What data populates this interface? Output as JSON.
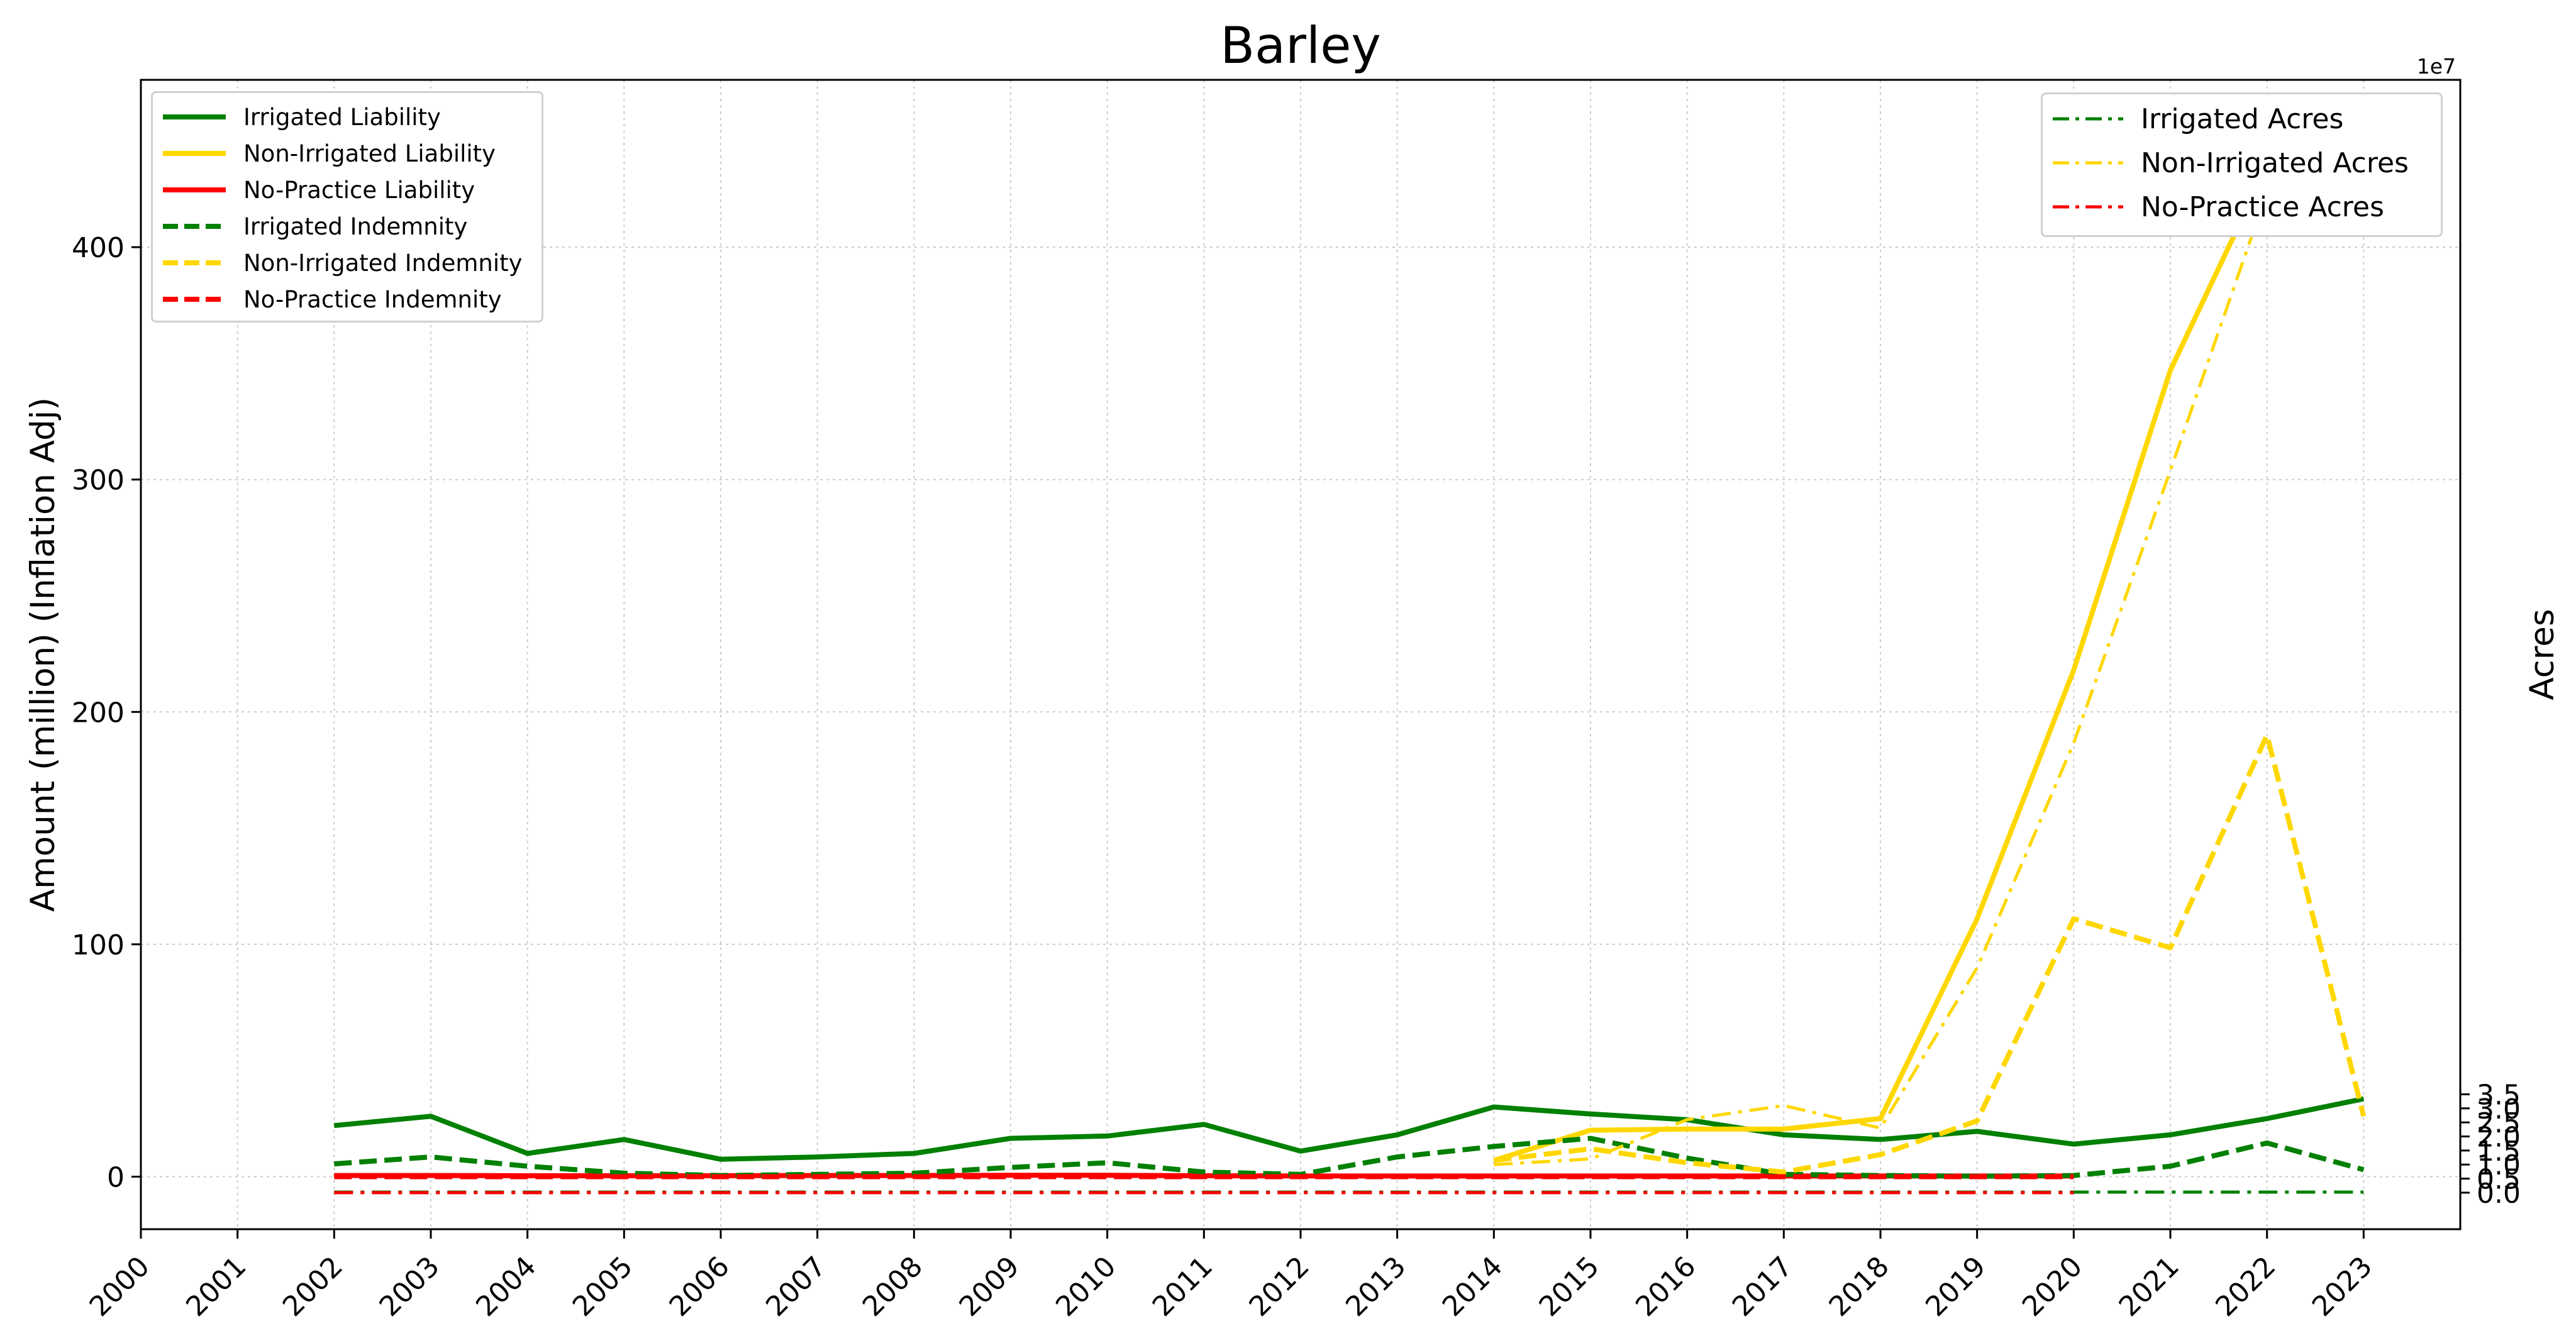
{
  "chart_data": {
    "type": "line",
    "title": "Barley",
    "ylabel": "Amount (million) (Inflation Adj)",
    "y2label": "Acres",
    "y2_offset_label": "1e7",
    "grid": true,
    "xlim": [
      2000,
      2024
    ],
    "ylim": [
      -22.6,
      472
    ],
    "y2lim": [
      -1.3,
      39.6
    ],
    "y2_scale": 10000000,
    "x": [
      2000,
      2001,
      2002,
      2003,
      2004,
      2005,
      2006,
      2007,
      2008,
      2009,
      2010,
      2011,
      2012,
      2013,
      2014,
      2015,
      2016,
      2017,
      2018,
      2019,
      2020,
      2021,
      2022,
      2023
    ],
    "xticks": [
      "2000",
      "2001",
      "2002",
      "2003",
      "2004",
      "2005",
      "2006",
      "2007",
      "2008",
      "2009",
      "2010",
      "2011",
      "2012",
      "2013",
      "2014",
      "2015",
      "2016",
      "2017",
      "2018",
      "2019",
      "2020",
      "2021",
      "2022",
      "2023"
    ],
    "yticks": [
      "0",
      "100",
      "200",
      "300",
      "400"
    ],
    "y2ticks": [
      "0.0",
      "0.5",
      "1.0",
      "1.5",
      "2.0",
      "2.5",
      "3.0",
      "3.5"
    ],
    "legend_left": {
      "placement": "top-left",
      "entries": [
        "Irrigated Liability",
        "Non-Irrigated Liability",
        "No-Practice Liability",
        "Irrigated Indemnity",
        "Non-Irrigated Indemnity",
        "No-Practice Indemnity"
      ]
    },
    "legend_right": {
      "placement": "top-right",
      "entries": [
        "Irrigated Acres",
        "Non-Irrigated Acres",
        "No-Practice Acres"
      ]
    },
    "colors": {
      "green": "#008000",
      "gold": "#FFD700",
      "red": "#FF0000"
    },
    "series": [
      {
        "name": "Irrigated Liability",
        "axis": "left",
        "style": "solid",
        "color": "#008000",
        "values": [
          null,
          null,
          22,
          26,
          10,
          16,
          7.5,
          8.5,
          10,
          16.5,
          17.5,
          22.5,
          11,
          18,
          30,
          27,
          24.5,
          18,
          16,
          19.5,
          14,
          18,
          25,
          33.5
        ]
      },
      {
        "name": "Non-Irrigated Liability",
        "axis": "left",
        "style": "solid",
        "color": "#FFD700",
        "values": [
          null,
          null,
          null,
          null,
          null,
          null,
          null,
          null,
          null,
          null,
          null,
          null,
          null,
          null,
          7,
          20,
          20.5,
          20.5,
          25,
          111,
          218,
          347,
          435,
          453
        ]
      },
      {
        "name": "No-Practice Liability",
        "axis": "left",
        "style": "solid",
        "color": "#FF0000",
        "values": [
          null,
          null,
          0.5,
          0.5,
          0.4,
          0.4,
          0.4,
          0.5,
          0.5,
          0.6,
          0.6,
          0.4,
          0.3,
          0.3,
          0.3,
          0.3,
          0.3,
          0.3,
          0.3,
          0.3,
          0.3,
          null,
          null,
          null
        ]
      },
      {
        "name": "Irrigated Indemnity",
        "axis": "left",
        "style": "dashed",
        "color": "#008000",
        "values": [
          null,
          null,
          5.5,
          8.5,
          4.5,
          1.5,
          0.5,
          1,
          1.5,
          4,
          6,
          2,
          1,
          8.5,
          13,
          16.5,
          8,
          1,
          0.5,
          0.2,
          0.5,
          4.5,
          14.5,
          3
        ]
      },
      {
        "name": "Non-Irrigated Indemnity",
        "axis": "left",
        "style": "dashed",
        "color": "#FFD700",
        "values": [
          null,
          null,
          null,
          null,
          null,
          null,
          null,
          null,
          null,
          null,
          null,
          null,
          null,
          null,
          7,
          12,
          6,
          2,
          9.5,
          24,
          111,
          98.5,
          190,
          26
        ]
      },
      {
        "name": "No-Practice Indemnity",
        "axis": "left",
        "style": "dashed",
        "color": "#FF0000",
        "values": [
          null,
          null,
          0,
          0,
          0,
          0,
          0,
          0,
          0,
          0,
          0,
          0,
          0,
          0,
          0,
          0,
          0,
          0,
          0,
          0,
          0,
          null,
          null,
          null
        ]
      },
      {
        "name": "Irrigated Acres",
        "axis": "right",
        "style": "dashdot",
        "color": "#008000",
        "values": [
          null,
          null,
          0.02,
          0.02,
          0.02,
          0.02,
          0.02,
          0.02,
          0.02,
          0.02,
          0.02,
          0.02,
          0.02,
          0.02,
          0.02,
          0.02,
          0.02,
          0.02,
          0.02,
          0.02,
          0.02,
          0.02,
          0.02,
          0.02
        ]
      },
      {
        "name": "Non-Irrigated Acres",
        "axis": "right",
        "style": "dashdot",
        "color": "#FFD700",
        "values": [
          null,
          null,
          null,
          null,
          null,
          null,
          null,
          null,
          null,
          null,
          null,
          null,
          null,
          null,
          1.0,
          1.2,
          2.6,
          3.1,
          2.3,
          8.0,
          16.0,
          25.7,
          35.6,
          37.6
        ]
      },
      {
        "name": "No-Practice Acres",
        "axis": "right",
        "style": "dashdot",
        "color": "#FF0000",
        "values": [
          null,
          null,
          0,
          0,
          0,
          0,
          0,
          0,
          0,
          0,
          0,
          0,
          0,
          0,
          0,
          0,
          0,
          0,
          0,
          0,
          0,
          null,
          null,
          null
        ]
      }
    ]
  }
}
